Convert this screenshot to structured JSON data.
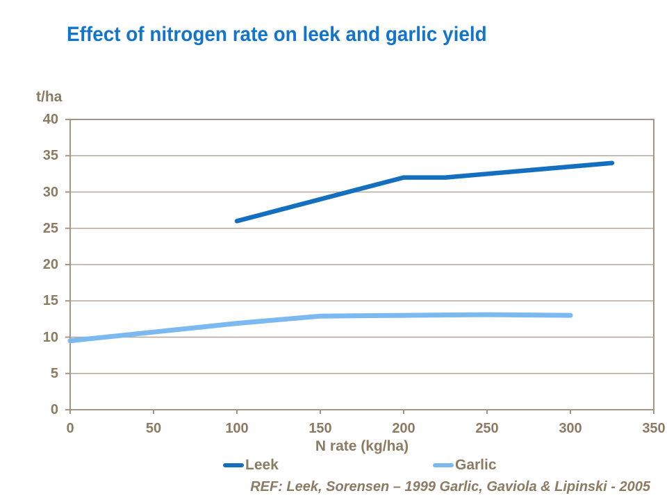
{
  "chart_data": {
    "type": "line",
    "title": "Effect of nitrogen rate on leek and garlic yield",
    "ylabel": "t/ha",
    "xlabel": "N rate (kg/ha)",
    "xlim": [
      0,
      350
    ],
    "ylim": [
      0,
      40
    ],
    "x_ticks": [
      0,
      50,
      100,
      150,
      200,
      250,
      300,
      350
    ],
    "y_ticks": [
      0,
      5,
      10,
      15,
      20,
      25,
      30,
      35,
      40
    ],
    "grid": "horizontal-only",
    "legend_position": "bottom-center",
    "series": [
      {
        "name": "Leek",
        "color": "#1470BE",
        "line_width": 6.5,
        "x": [
          100,
          200,
          225,
          325
        ],
        "values": [
          26,
          32,
          32,
          34
        ]
      },
      {
        "name": "Garlic",
        "color": "#7CB9F1",
        "line_width": 7,
        "x": [
          0,
          50,
          100,
          150,
          200,
          250,
          300
        ],
        "values": [
          9.5,
          10.7,
          11.9,
          12.9,
          13,
          13.1,
          13
        ]
      }
    ],
    "colors": {
      "title": "#1274CC",
      "text": "#8C7B63",
      "gridline": "#B5A795",
      "frame": "#A59584"
    }
  },
  "footer": {
    "ref_text": "REF: Leek, Sorensen – 1999 Garlic, Gaviola & Lipinski - 2005"
  }
}
